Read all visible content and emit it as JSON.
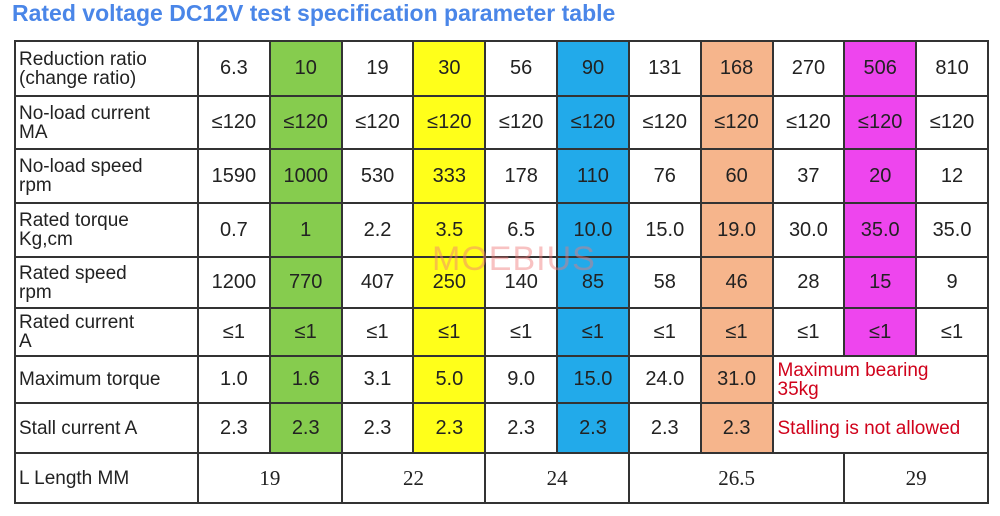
{
  "title": "Rated voltage DC12V test specification parameter table",
  "watermark": "MOEBIUS",
  "table": {
    "rows": [
      [
        "Reduction ratio\n(change ratio)",
        "6.3",
        "10",
        "19",
        "30",
        "56",
        "90",
        "131",
        "168",
        "270",
        "506",
        "810"
      ],
      [
        "No-load current\nMA",
        "≤120",
        "≤120",
        "≤120",
        "≤120",
        "≤120",
        "≤120",
        "≤120",
        "≤120",
        "≤120",
        "≤120",
        "≤120"
      ],
      [
        "No-load speed\nrpm",
        "1590",
        "1000",
        "530",
        "333",
        "178",
        "110",
        "76",
        "60",
        "37",
        "20",
        "12"
      ],
      [
        "Rated torque\nKg,cm",
        "0.7",
        "1",
        "2.2",
        "3.5",
        "6.5",
        "10.0",
        "15.0",
        "19.0",
        "30.0",
        "35.0",
        "35.0"
      ],
      [
        "Rated speed\nrpm",
        "1200",
        "770",
        "407",
        "250",
        "140",
        "85",
        "58",
        "46",
        "28",
        "15",
        "9"
      ],
      [
        "Rated current\nA",
        "≤1",
        "≤1",
        "≤1",
        "≤1",
        "≤1",
        "≤1",
        "≤1",
        "≤1",
        "≤1",
        "≤1",
        "≤1"
      ],
      [
        "Maximum torque",
        "1.0",
        "1.6",
        "3.1",
        "5.0",
        "9.0",
        "15.0",
        "24.0",
        "31.0",
        "Maximum bearing\n35kg"
      ],
      [
        "Stall current A",
        "2.3",
        "2.3",
        "2.3",
        "2.3",
        "2.3",
        "2.3",
        "2.3",
        "2.3",
        "Stalling is not allowed"
      ],
      [
        "L Length MM",
        "19",
        "22",
        "24",
        "26.5",
        "29"
      ]
    ]
  }
}
